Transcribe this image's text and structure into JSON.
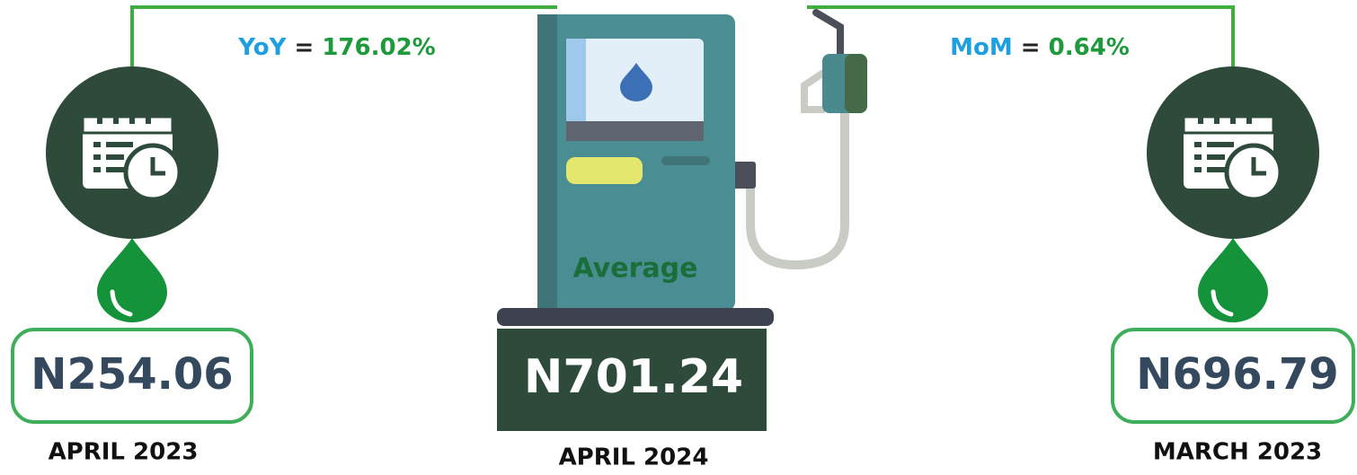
{
  "comparisons": {
    "yoy": {
      "label": "YoY",
      "sign": "=",
      "value": "176.02%"
    },
    "mom": {
      "label": "MoM",
      "sign": "=",
      "value": "0.64%"
    }
  },
  "left": {
    "price": "N254.06",
    "period": "APRIL 2023"
  },
  "center": {
    "caption": "Average",
    "price": "N701.24",
    "period": "APRIL 2024"
  },
  "right": {
    "price": "N696.79",
    "period": "MARCH 2023"
  }
}
